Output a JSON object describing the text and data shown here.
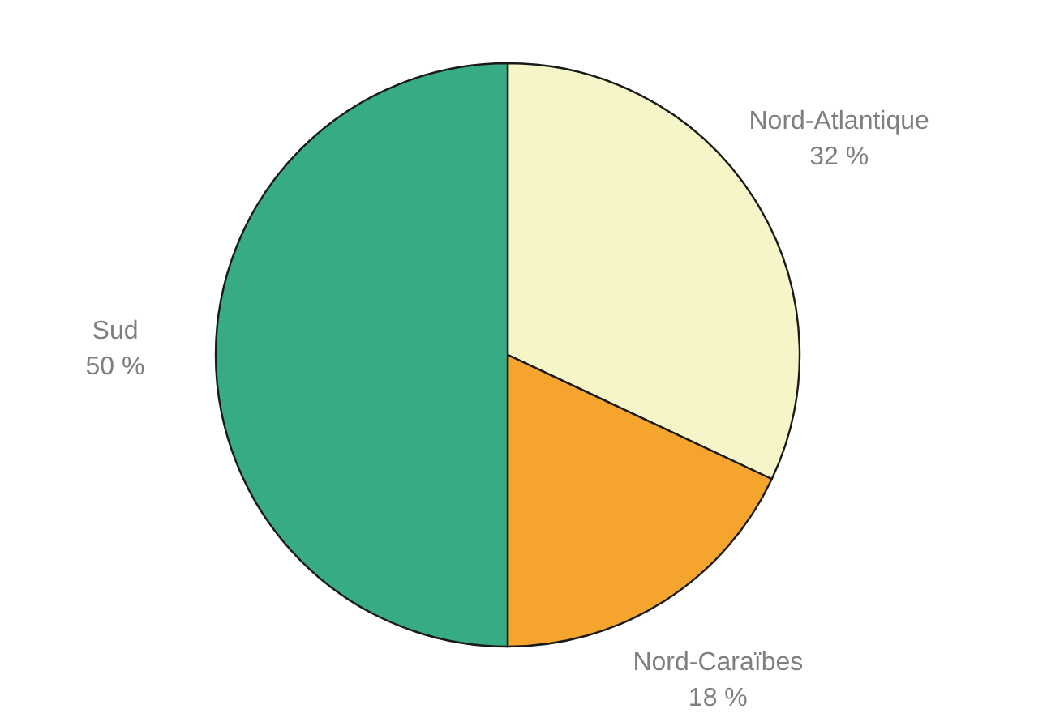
{
  "chart_data": {
    "type": "pie",
    "categories": [
      "Nord-Atlantique",
      "Nord-Caraïbes",
      "Sud"
    ],
    "values": [
      32,
      18,
      50
    ],
    "colors": [
      "#f5f5c8",
      "#f5a52d",
      "#36ab84"
    ],
    "value_labels": [
      "32 %",
      "18 %",
      "50 %"
    ]
  }
}
